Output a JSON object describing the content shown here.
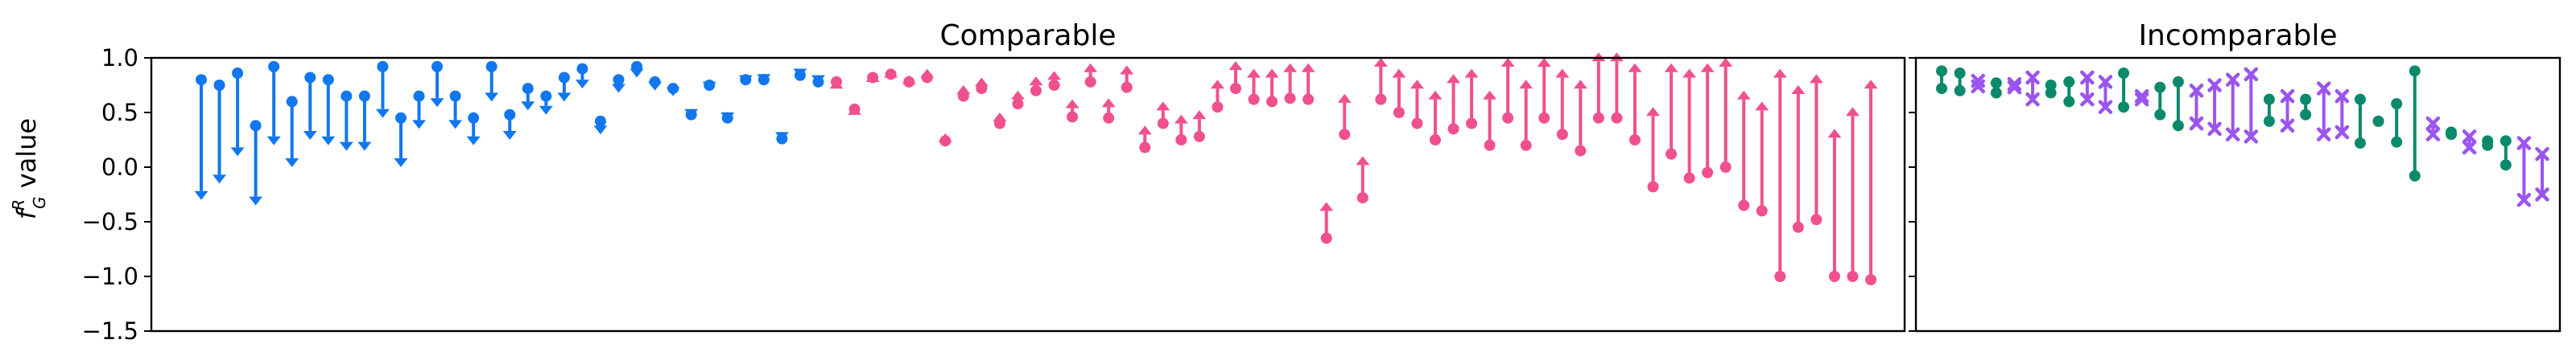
{
  "figure": {
    "ylabel_main": "f",
    "ylabel_sup": "R",
    "ylabel_sub": "G",
    "ylabel_rest": " value"
  },
  "colors": {
    "down": "#1177ee",
    "up": "#f0508e",
    "green": "#0a8a6a",
    "purple": "#9b55ee"
  },
  "chart_data": [
    {
      "type": "arrow",
      "title": "Comparable",
      "ylim": [
        -1.5,
        1.0
      ],
      "yticks": [
        -1.5,
        -1.0,
        -0.5,
        0.0,
        0.5,
        1.0
      ],
      "ytick_labels": [
        "−1.5",
        "−1.0",
        "−0.5",
        "0.0",
        "0.5",
        "1.0"
      ],
      "series": [
        {
          "direction": "down",
          "pairs": [
            [
              0.8,
              -0.3
            ],
            [
              0.75,
              -0.15
            ],
            [
              0.86,
              0.1
            ],
            [
              0.38,
              -0.35
            ],
            [
              0.92,
              0.2
            ],
            [
              0.6,
              0.0
            ],
            [
              0.82,
              0.25
            ],
            [
              0.8,
              0.2
            ],
            [
              0.65,
              0.15
            ],
            [
              0.65,
              0.15
            ],
            [
              0.92,
              0.45
            ],
            [
              0.45,
              0.0
            ],
            [
              0.65,
              0.35
            ],
            [
              0.92,
              0.55
            ],
            [
              0.65,
              0.35
            ],
            [
              0.45,
              0.2
            ],
            [
              0.92,
              0.6
            ],
            [
              0.48,
              0.25
            ],
            [
              0.72,
              0.52
            ],
            [
              0.65,
              0.48
            ],
            [
              0.82,
              0.6
            ],
            [
              0.9,
              0.72
            ],
            [
              0.42,
              0.3
            ],
            [
              0.8,
              0.68
            ],
            [
              0.92,
              0.82
            ],
            [
              0.78,
              0.7
            ],
            [
              0.72,
              0.65
            ],
            [
              0.48,
              0.45
            ],
            [
              0.75,
              0.7
            ],
            [
              0.45,
              0.42
            ],
            [
              0.8,
              0.76
            ],
            [
              0.8,
              0.77
            ],
            [
              0.26,
              0.24
            ],
            [
              0.84,
              0.82
            ],
            [
              0.78,
              0.76
            ]
          ]
        },
        {
          "direction": "up",
          "pairs": [
            [
              0.78,
              0.8
            ],
            [
              0.53,
              0.56
            ],
            [
              0.82,
              0.86
            ],
            [
              0.85,
              0.9
            ],
            [
              0.78,
              0.84
            ],
            [
              0.82,
              0.9
            ],
            [
              0.24,
              0.31
            ],
            [
              0.65,
              0.75
            ],
            [
              0.72,
              0.82
            ],
            [
              0.4,
              0.5
            ],
            [
              0.58,
              0.7
            ],
            [
              0.7,
              0.83
            ],
            [
              0.75,
              0.88
            ],
            [
              0.46,
              0.62
            ],
            [
              0.78,
              0.95
            ],
            [
              0.45,
              0.63
            ],
            [
              0.73,
              0.93
            ],
            [
              0.18,
              0.38
            ],
            [
              0.4,
              0.6
            ],
            [
              0.25,
              0.48
            ],
            [
              0.28,
              0.52
            ],
            [
              0.55,
              0.8
            ],
            [
              0.72,
              0.97
            ],
            [
              0.62,
              0.9
            ],
            [
              0.6,
              0.9
            ],
            [
              0.63,
              0.95
            ],
            [
              0.62,
              0.95
            ],
            [
              -0.65,
              -0.32
            ],
            [
              0.3,
              0.67
            ],
            [
              -0.28,
              0.1
            ],
            [
              0.62,
              1.0
            ],
            [
              0.5,
              0.9
            ],
            [
              0.4,
              0.8
            ],
            [
              0.25,
              0.7
            ],
            [
              0.35,
              0.85
            ],
            [
              0.4,
              0.9
            ],
            [
              0.2,
              0.7
            ],
            [
              0.45,
              1.0
            ],
            [
              0.2,
              0.8
            ],
            [
              0.45,
              1.0
            ],
            [
              0.3,
              0.9
            ],
            [
              0.15,
              0.8
            ],
            [
              0.45,
              1.05
            ],
            [
              0.45,
              1.05
            ],
            [
              0.25,
              0.95
            ],
            [
              -0.18,
              0.55
            ],
            [
              0.12,
              0.95
            ],
            [
              -0.1,
              0.9
            ],
            [
              -0.05,
              0.95
            ],
            [
              0.0,
              1.0
            ],
            [
              -0.35,
              0.7
            ],
            [
              -0.4,
              0.6
            ],
            [
              -1.0,
              0.9
            ],
            [
              -0.55,
              0.75
            ],
            [
              -0.48,
              0.85
            ],
            [
              -1.0,
              0.35
            ],
            [
              -1.0,
              0.55
            ],
            [
              -1.03,
              0.8
            ]
          ]
        }
      ]
    },
    {
      "type": "interval",
      "title": "Incomparable",
      "ylim": [
        -1.5,
        1.0
      ],
      "yticks": [
        -1.5,
        -1.0,
        -0.5,
        0.0,
        0.5,
        1.0
      ],
      "series": [
        {
          "segments": [
            {
              "marker": "dot",
              "color": "green",
              "values": [
                0.88,
                0.72
              ]
            },
            {
              "marker": "dot",
              "color": "green",
              "values": [
                0.86,
                0.7
              ]
            },
            {
              "marker": "x",
              "color": "purple",
              "values": [
                0.79,
                0.74
              ]
            },
            {
              "marker": "dot",
              "color": "green",
              "values": [
                0.77,
                0.68
              ]
            },
            {
              "marker": "x",
              "color": "purple",
              "values": [
                0.76,
                0.73
              ]
            },
            {
              "marker": "x",
              "color": "purple",
              "values": [
                0.82,
                0.62
              ]
            },
            {
              "marker": "dot",
              "color": "green",
              "values": [
                0.75,
                0.68
              ]
            },
            {
              "marker": "dot",
              "color": "green",
              "values": [
                0.78,
                0.6
              ]
            },
            {
              "marker": "x",
              "color": "purple",
              "values": [
                0.82,
                0.62
              ]
            },
            {
              "marker": "x",
              "color": "purple",
              "values": [
                0.78,
                0.55
              ]
            },
            {
              "marker": "dot",
              "color": "green",
              "values": [
                0.86,
                0.55
              ]
            },
            {
              "marker": "x",
              "color": "purple",
              "values": [
                0.65,
                0.62
              ]
            },
            {
              "marker": "dot",
              "color": "green",
              "values": [
                0.73,
                0.48
              ]
            },
            {
              "marker": "dot",
              "color": "green",
              "values": [
                0.78,
                0.38
              ]
            },
            {
              "marker": "x",
              "color": "purple",
              "values": [
                0.7,
                0.4
              ]
            },
            {
              "marker": "x",
              "color": "purple",
              "values": [
                0.75,
                0.35
              ]
            },
            {
              "marker": "x",
              "color": "purple",
              "values": [
                0.8,
                0.3
              ]
            },
            {
              "marker": "x",
              "color": "purple",
              "values": [
                0.85,
                0.28
              ]
            },
            {
              "marker": "dot",
              "color": "green",
              "values": [
                0.62,
                0.42
              ]
            },
            {
              "marker": "x",
              "color": "purple",
              "values": [
                0.65,
                0.38
              ]
            },
            {
              "marker": "dot",
              "color": "green",
              "values": [
                0.62,
                0.48
              ]
            },
            {
              "marker": "x",
              "color": "purple",
              "values": [
                0.72,
                0.3
              ]
            },
            {
              "marker": "x",
              "color": "purple",
              "values": [
                0.65,
                0.32
              ]
            },
            {
              "marker": "dot",
              "color": "green",
              "values": [
                0.62,
                0.22
              ]
            },
            {
              "marker": "dot",
              "color": "green",
              "values": [
                0.42,
                0.42
              ]
            },
            {
              "marker": "dot",
              "color": "green",
              "values": [
                0.58,
                0.23
              ]
            },
            {
              "marker": "dot",
              "color": "green",
              "values": [
                0.88,
                -0.08
              ]
            },
            {
              "marker": "x",
              "color": "purple",
              "values": [
                0.4,
                0.3
              ]
            },
            {
              "marker": "dot",
              "color": "green",
              "values": [
                0.32,
                0.3
              ]
            },
            {
              "marker": "x",
              "color": "purple",
              "values": [
                0.28,
                0.18
              ]
            },
            {
              "marker": "dot",
              "color": "green",
              "values": [
                0.24,
                0.2
              ]
            },
            {
              "marker": "dot",
              "color": "green",
              "values": [
                0.24,
                0.02
              ]
            },
            {
              "marker": "x",
              "color": "purple",
              "values": [
                0.22,
                -0.3
              ]
            },
            {
              "marker": "x",
              "color": "purple",
              "values": [
                0.12,
                -0.25
              ]
            }
          ]
        }
      ]
    }
  ]
}
